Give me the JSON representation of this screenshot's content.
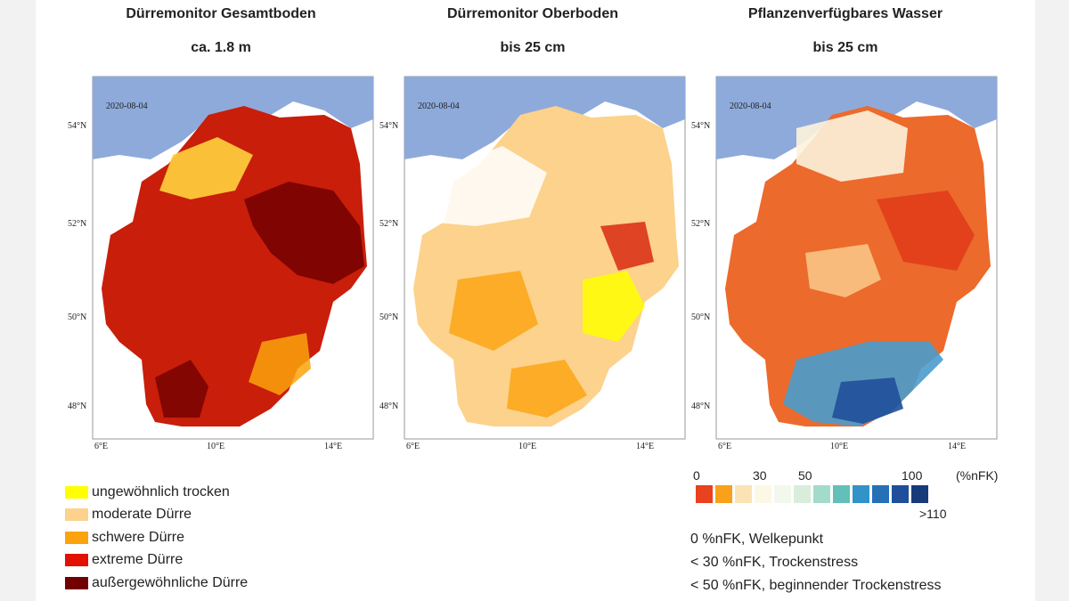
{
  "panels": [
    {
      "title": "Dürremonitor Gesamtboden",
      "subtitle": "ca. 1.8 m",
      "date": "2020-08-04"
    },
    {
      "title": "Dürremonitor Oberboden",
      "subtitle": "bis 25 cm",
      "date": "2020-08-04"
    },
    {
      "title": "Pflanzenverfügbares Wasser",
      "subtitle": "bis 25 cm",
      "date": "2020-08-04"
    }
  ],
  "axes": {
    "lat_labels": [
      "54°N",
      "52°N",
      "50°N",
      "48°N"
    ],
    "lon_labels": [
      "6°E",
      "10°E",
      "14°E"
    ]
  },
  "legend_drought": [
    {
      "label": "ungewöhnlich trocken",
      "color": "#ffff00"
    },
    {
      "label": "moderate Dürre",
      "color": "#fcd28c"
    },
    {
      "label": "schwere Dürre",
      "color": "#fba30d"
    },
    {
      "label": "extreme Dürre",
      "color": "#e30f00"
    },
    {
      "label": "außergewöhnliche Dürre",
      "color": "#730000"
    }
  ],
  "legend_water": {
    "labels": {
      "l0": "0",
      "l30": "30",
      "l50": "50",
      "l100": "100",
      "unit": "(%nFK)",
      "l110": ">110"
    },
    "colors": [
      "#e8421f",
      "#f9a11b",
      "#fbe3b5",
      "#fdf7e6",
      "#f2f8ec",
      "#d8eedb",
      "#a3dbcb",
      "#63bfb8",
      "#3293c8",
      "#2670b6",
      "#1f4f9a",
      "#173a7a"
    ]
  },
  "notes": [
    "0 %nFK, Welkepunkt",
    "< 30 %nFK, Trockenstress",
    "< 50 %nFK, beginnender Trockenstress"
  ]
}
